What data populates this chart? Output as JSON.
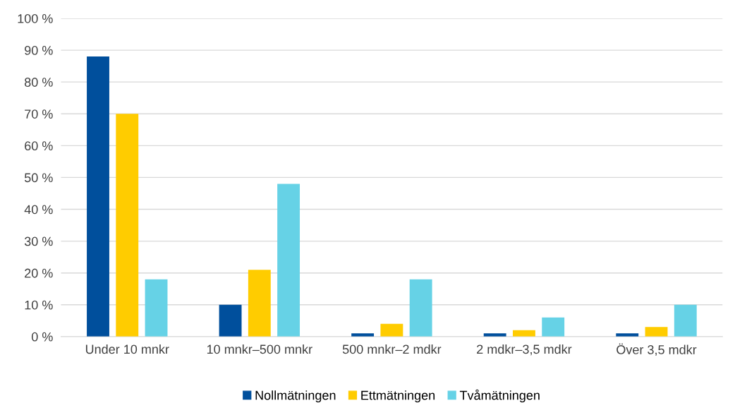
{
  "chart_data": {
    "type": "bar",
    "categories": [
      "Under 10 mnkr",
      "10 mnkr–500 mnkr",
      "500 mnkr–2 mdkr",
      "2 mdkr–3,5 mdkr",
      "Över 3,5 mdkr"
    ],
    "series": [
      {
        "name": "Nollmätningen",
        "color": "#004f9c",
        "values": [
          88,
          10,
          1,
          1,
          1
        ]
      },
      {
        "name": "Ettmätningen",
        "color": "#ffcc00",
        "values": [
          70,
          21,
          4,
          2,
          3
        ]
      },
      {
        "name": "Tvåmätningen",
        "color": "#66d2e6",
        "values": [
          18,
          48,
          18,
          6,
          10
        ]
      }
    ],
    "ylim": [
      0,
      100
    ],
    "yticks": [
      {
        "value": 0,
        "label": "0 %"
      },
      {
        "value": 10,
        "label": "10 %"
      },
      {
        "value": 20,
        "label": "20 %"
      },
      {
        "value": 30,
        "label": "30 %"
      },
      {
        "value": 40,
        "label": "40 %"
      },
      {
        "value": 50,
        "label": "50 %"
      },
      {
        "value": 60,
        "label": "60 %"
      },
      {
        "value": 70,
        "label": "70 %"
      },
      {
        "value": 80,
        "label": "80 %"
      },
      {
        "value": 90,
        "label": "90 %"
      },
      {
        "value": 100,
        "label": "100 %"
      }
    ],
    "grid": "y",
    "legend": "bottom"
  }
}
